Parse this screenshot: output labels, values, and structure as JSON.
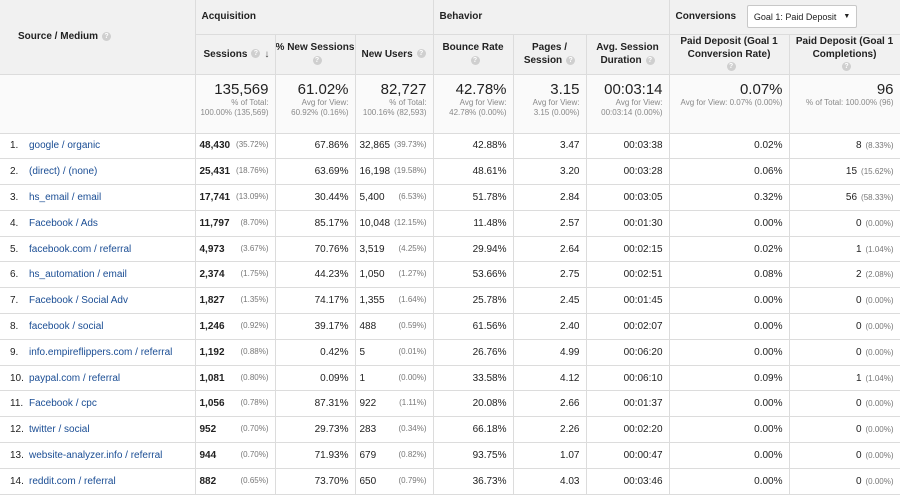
{
  "header": {
    "source_medium": "Source / Medium",
    "acquisition": "Acquisition",
    "behavior": "Behavior",
    "conversions": "Conversions",
    "goal_select": "Goal 1: Paid Deposit",
    "help": "?",
    "sessions": "Sessions",
    "new_sessions": "% New Sessions",
    "new_users": "New Users",
    "bounce_rate": "Bounce Rate",
    "pages_l1": "Pages /",
    "pages_l2": "Session",
    "avg_l1": "Avg. Session",
    "avg_l2": "Duration",
    "conv_l1": "Paid Deposit (Goal 1",
    "conv_l2": "Conversion Rate)",
    "comp_l1": "Paid Deposit (Goal 1",
    "comp_l2": "Completions)"
  },
  "totals": {
    "sessions": "135,569",
    "sessions_sub": "% of Total: 100.00% (135,569)",
    "new_sessions": "61.02%",
    "new_sessions_sub": "Avg for View: 60.92% (0.16%)",
    "new_users": "82,727",
    "new_users_sub": "% of Total: 100.16% (82,593)",
    "bounce": "42.78%",
    "bounce_sub": "Avg for View: 42.78% (0.00%)",
    "pages": "3.15",
    "pages_sub": "Avg for View: 3.15 (0.00%)",
    "duration": "00:03:14",
    "duration_sub": "Avg for View: 00:03:14 (0.00%)",
    "conv_rate": "0.07%",
    "conv_rate_sub": "Avg for View: 0.07% (0.00%)",
    "completions": "96",
    "completions_sub": "% of Total: 100.00% (96)"
  },
  "rows": [
    {
      "n": "1.",
      "src": "google / organic",
      "sessions": "48,430",
      "sessions_pct": "(35.72%)",
      "new_sessions": "67.86%",
      "new_users": "32,865",
      "new_users_pct": "(39.73%)",
      "bounce": "42.88%",
      "pages": "3.47",
      "duration": "00:03:38",
      "conv": "0.02%",
      "comp": "8",
      "comp_pct": "(8.33%)"
    },
    {
      "n": "2.",
      "src": "(direct) / (none)",
      "sessions": "25,431",
      "sessions_pct": "(18.76%)",
      "new_sessions": "63.69%",
      "new_users": "16,198",
      "new_users_pct": "(19.58%)",
      "bounce": "48.61%",
      "pages": "3.20",
      "duration": "00:03:28",
      "conv": "0.06%",
      "comp": "15",
      "comp_pct": "(15.62%)"
    },
    {
      "n": "3.",
      "src": "hs_email / email",
      "sessions": "17,741",
      "sessions_pct": "(13.09%)",
      "new_sessions": "30.44%",
      "new_users": "5,400",
      "new_users_pct": "(6.53%)",
      "bounce": "51.78%",
      "pages": "2.84",
      "duration": "00:03:05",
      "conv": "0.32%",
      "comp": "56",
      "comp_pct": "(58.33%)"
    },
    {
      "n": "4.",
      "src": "Facebook / Ads",
      "sessions": "11,797",
      "sessions_pct": "(8.70%)",
      "new_sessions": "85.17%",
      "new_users": "10,048",
      "new_users_pct": "(12.15%)",
      "bounce": "11.48%",
      "pages": "2.57",
      "duration": "00:01:30",
      "conv": "0.00%",
      "comp": "0",
      "comp_pct": "(0.00%)"
    },
    {
      "n": "5.",
      "src": "facebook.com / referral",
      "sessions": "4,973",
      "sessions_pct": "(3.67%)",
      "new_sessions": "70.76%",
      "new_users": "3,519",
      "new_users_pct": "(4.25%)",
      "bounce": "29.94%",
      "pages": "2.64",
      "duration": "00:02:15",
      "conv": "0.02%",
      "comp": "1",
      "comp_pct": "(1.04%)"
    },
    {
      "n": "6.",
      "src": "hs_automation / email",
      "sessions": "2,374",
      "sessions_pct": "(1.75%)",
      "new_sessions": "44.23%",
      "new_users": "1,050",
      "new_users_pct": "(1.27%)",
      "bounce": "53.66%",
      "pages": "2.75",
      "duration": "00:02:51",
      "conv": "0.08%",
      "comp": "2",
      "comp_pct": "(2.08%)"
    },
    {
      "n": "7.",
      "src": "Facebook / Social Adv",
      "sessions": "1,827",
      "sessions_pct": "(1.35%)",
      "new_sessions": "74.17%",
      "new_users": "1,355",
      "new_users_pct": "(1.64%)",
      "bounce": "25.78%",
      "pages": "2.45",
      "duration": "00:01:45",
      "conv": "0.00%",
      "comp": "0",
      "comp_pct": "(0.00%)"
    },
    {
      "n": "8.",
      "src": "facebook / social",
      "sessions": "1,246",
      "sessions_pct": "(0.92%)",
      "new_sessions": "39.17%",
      "new_users": "488",
      "new_users_pct": "(0.59%)",
      "bounce": "61.56%",
      "pages": "2.40",
      "duration": "00:02:07",
      "conv": "0.00%",
      "comp": "0",
      "comp_pct": "(0.00%)"
    },
    {
      "n": "9.",
      "src": "info.empireflippers.com / referral",
      "sessions": "1,192",
      "sessions_pct": "(0.88%)",
      "new_sessions": "0.42%",
      "new_users": "5",
      "new_users_pct": "(0.01%)",
      "bounce": "26.76%",
      "pages": "4.99",
      "duration": "00:06:20",
      "conv": "0.00%",
      "comp": "0",
      "comp_pct": "(0.00%)"
    },
    {
      "n": "10.",
      "src": "paypal.com / referral",
      "sessions": "1,081",
      "sessions_pct": "(0.80%)",
      "new_sessions": "0.09%",
      "new_users": "1",
      "new_users_pct": "(0.00%)",
      "bounce": "33.58%",
      "pages": "4.12",
      "duration": "00:06:10",
      "conv": "0.09%",
      "comp": "1",
      "comp_pct": "(1.04%)"
    },
    {
      "n": "11.",
      "src": "Facebook / cpc",
      "sessions": "1,056",
      "sessions_pct": "(0.78%)",
      "new_sessions": "87.31%",
      "new_users": "922",
      "new_users_pct": "(1.11%)",
      "bounce": "20.08%",
      "pages": "2.66",
      "duration": "00:01:37",
      "conv": "0.00%",
      "comp": "0",
      "comp_pct": "(0.00%)"
    },
    {
      "n": "12.",
      "src": "twitter / social",
      "sessions": "952",
      "sessions_pct": "(0.70%)",
      "new_sessions": "29.73%",
      "new_users": "283",
      "new_users_pct": "(0.34%)",
      "bounce": "66.18%",
      "pages": "2.26",
      "duration": "00:02:20",
      "conv": "0.00%",
      "comp": "0",
      "comp_pct": "(0.00%)"
    },
    {
      "n": "13.",
      "src": "website-analyzer.info / referral",
      "sessions": "944",
      "sessions_pct": "(0.70%)",
      "new_sessions": "71.93%",
      "new_users": "679",
      "new_users_pct": "(0.82%)",
      "bounce": "93.75%",
      "pages": "1.07",
      "duration": "00:00:47",
      "conv": "0.00%",
      "comp": "0",
      "comp_pct": "(0.00%)"
    },
    {
      "n": "14.",
      "src": "reddit.com / referral",
      "sessions": "882",
      "sessions_pct": "(0.65%)",
      "new_sessions": "73.70%",
      "new_users": "650",
      "new_users_pct": "(0.79%)",
      "bounce": "36.73%",
      "pages": "4.03",
      "duration": "00:03:46",
      "conv": "0.00%",
      "comp": "0",
      "comp_pct": "(0.00%)"
    }
  ]
}
